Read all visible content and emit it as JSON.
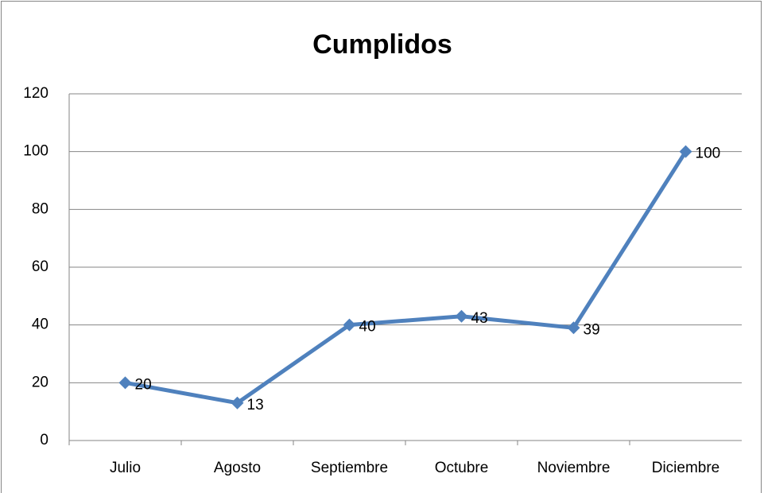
{
  "chart_data": {
    "type": "line",
    "title": "Cumplidos",
    "categories": [
      "Julio",
      "Agosto",
      "Septiembre",
      "Octubre",
      "Noviembre",
      "Diciembre"
    ],
    "series": [
      {
        "name": "Cumplidos",
        "color": "#4f81bd",
        "values": [
          20,
          13,
          40,
          43,
          39,
          100
        ]
      }
    ],
    "ylim": [
      0,
      120
    ],
    "yticks": [
      0,
      20,
      40,
      60,
      80,
      100,
      120
    ],
    "grid": true
  }
}
